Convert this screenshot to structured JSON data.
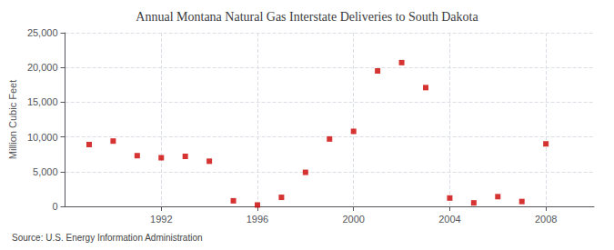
{
  "chart_data": {
    "type": "scatter",
    "title": "Annual Montana Natural Gas Interstate Deliveries to South Dakota",
    "ylabel": "Million Cubic Feet",
    "source": "Source: U.S. Energy Information Administration",
    "x": [
      1989,
      1990,
      1991,
      1992,
      1993,
      1994,
      1995,
      1996,
      1997,
      1998,
      1999,
      2000,
      2001,
      2002,
      2003,
      2004,
      2005,
      2006,
      2007,
      2008
    ],
    "values": [
      8900,
      9400,
      7300,
      7000,
      7200,
      6500,
      800,
      200,
      1300,
      4900,
      9700,
      10800,
      19500,
      20700,
      17100,
      1200,
      500,
      1400,
      700,
      9000
    ],
    "color": "#CC0000",
    "marker": "square",
    "xlim": [
      1988,
      2010
    ],
    "xticks": [
      1992,
      1996,
      2000,
      2004,
      2008
    ],
    "ylim": [
      0,
      25000
    ],
    "yticks": [
      0,
      {
        "value": 5000,
        "label": "5,000"
      },
      {
        "value": 10000,
        "label": "10,000"
      },
      {
        "value": 15000,
        "label": "15,000"
      },
      {
        "value": 20000,
        "label": "20,000"
      },
      {
        "value": 25000,
        "label": "25,000"
      }
    ],
    "grid": true
  }
}
